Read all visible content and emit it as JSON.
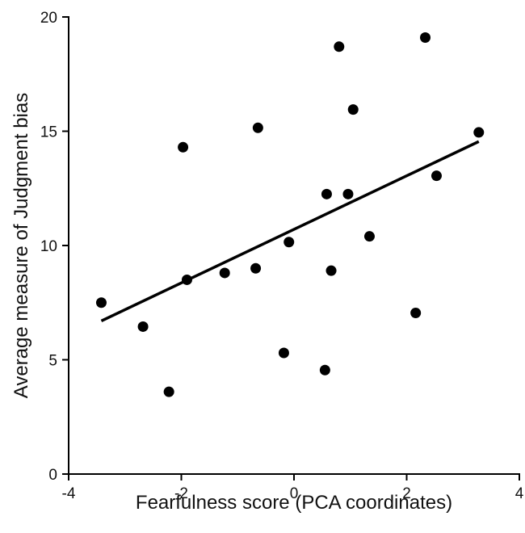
{
  "chart_data": {
    "type": "scatter",
    "xlabel": "Fearfulness score (PCA coordinates)",
    "ylabel": "Average measure of Judgment bias",
    "xlim": [
      -4,
      4
    ],
    "ylim": [
      0,
      20
    ],
    "xticks": [
      -4,
      -2,
      0,
      2,
      4
    ],
    "yticks": [
      0,
      5,
      10,
      15,
      20
    ],
    "xtick_labels": [
      "-4",
      "-2",
      "0",
      "2",
      "4"
    ],
    "ytick_labels": [
      "0",
      "5",
      "10",
      "15",
      "20"
    ],
    "grid": false,
    "points": [
      {
        "x": -3.42,
        "y": 7.5
      },
      {
        "x": -2.68,
        "y": 6.45
      },
      {
        "x": -2.22,
        "y": 3.6
      },
      {
        "x": -1.97,
        "y": 14.3
      },
      {
        "x": -1.9,
        "y": 8.5
      },
      {
        "x": -1.23,
        "y": 8.8
      },
      {
        "x": -0.68,
        "y": 9.0
      },
      {
        "x": -0.64,
        "y": 15.15
      },
      {
        "x": -0.18,
        "y": 5.3
      },
      {
        "x": -0.09,
        "y": 10.15
      },
      {
        "x": 0.55,
        "y": 4.55
      },
      {
        "x": 0.58,
        "y": 12.25
      },
      {
        "x": 0.66,
        "y": 8.9
      },
      {
        "x": 0.8,
        "y": 18.7
      },
      {
        "x": 0.96,
        "y": 12.25
      },
      {
        "x": 1.05,
        "y": 15.95
      },
      {
        "x": 1.34,
        "y": 10.4
      },
      {
        "x": 2.16,
        "y": 7.05
      },
      {
        "x": 2.33,
        "y": 19.1
      },
      {
        "x": 2.53,
        "y": 13.05
      },
      {
        "x": 3.28,
        "y": 14.95
      }
    ],
    "trendline": {
      "x1": -3.42,
      "y1": 6.7,
      "x2": 3.28,
      "y2": 14.55
    }
  }
}
